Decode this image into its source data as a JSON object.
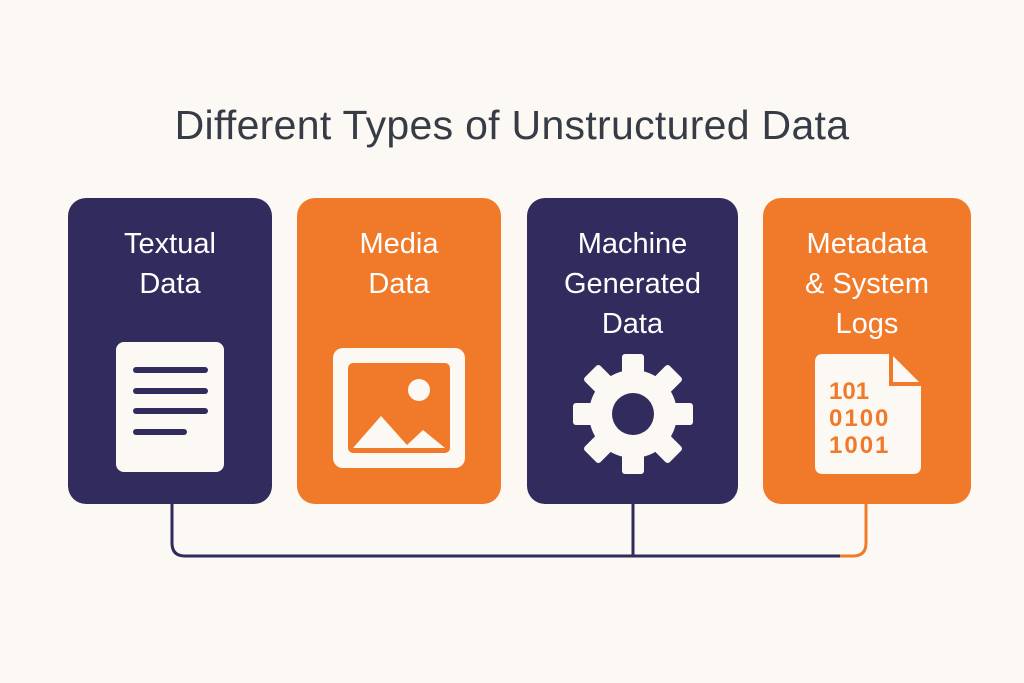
{
  "title": "Different Types of Unstructured Data",
  "colors": {
    "purple": "#322c5e",
    "orange": "#f07a2a",
    "icon": "#fcf9f4",
    "background": "#fcf9f4"
  },
  "cards": [
    {
      "label": "Textual\nData",
      "icon": "document-icon",
      "color": "purple"
    },
    {
      "label": "Media\nData",
      "icon": "image-icon",
      "color": "orange"
    },
    {
      "label": "Machine\nGenerated\nData",
      "icon": "gear-icon",
      "color": "purple"
    },
    {
      "label": "Metadata\n& System\nLogs",
      "icon": "binary-file-icon",
      "color": "orange",
      "icon_text": [
        "101",
        "0100",
        "1001"
      ]
    }
  ]
}
